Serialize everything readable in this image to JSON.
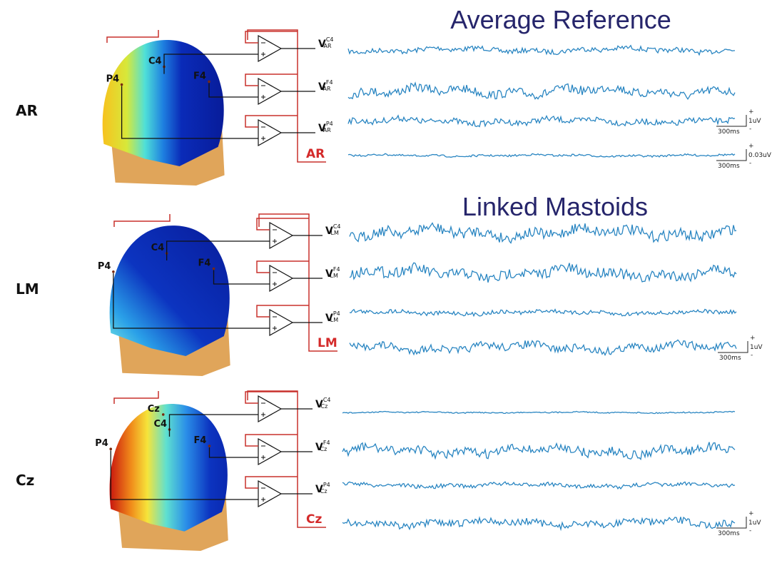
{
  "titles": [
    "Average Reference",
    "Linked Mastoids"
  ],
  "panels": [
    {
      "label": "AR",
      "reference": "AR",
      "electrodes": [
        "C4",
        "F4",
        "P4"
      ],
      "signals": [
        {
          "base": "V",
          "sup": "C4",
          "sub": "AR"
        },
        {
          "base": "V",
          "sup": "F4",
          "sub": "AR"
        },
        {
          "base": "V",
          "sup": "P4",
          "sub": "AR"
        }
      ],
      "scales": [
        {
          "plus": "+",
          "amplitude": "1uV",
          "minus": "-",
          "time": "300ms"
        },
        {
          "plus": "+",
          "amplitude": "0.03uV",
          "minus": "-",
          "time": "300ms"
        }
      ]
    },
    {
      "label": "LM",
      "reference": "LM",
      "electrodes": [
        "C4",
        "F4",
        "P4"
      ],
      "signals": [
        {
          "base": "V",
          "sup": "C4",
          "sub": "LM"
        },
        {
          "base": "V",
          "sup": "F4",
          "sub": "LM"
        },
        {
          "base": "V",
          "sup": "P4",
          "sub": "LM"
        }
      ],
      "scales": [
        {
          "plus": "+",
          "amplitude": "1uV",
          "minus": "-",
          "time": "300ms"
        }
      ]
    },
    {
      "label": "Cz",
      "reference": "Cz",
      "electrodes": [
        "Cz",
        "C4",
        "F4",
        "P4"
      ],
      "signals": [
        {
          "base": "V",
          "sup": "C4",
          "sub": "Cz"
        },
        {
          "base": "V",
          "sup": "F4",
          "sub": "Cz"
        },
        {
          "base": "V",
          "sup": "P4",
          "sub": "Cz"
        }
      ],
      "scales": [
        {
          "plus": "+",
          "amplitude": "1uV",
          "minus": "-",
          "time": "300ms"
        }
      ]
    }
  ]
}
